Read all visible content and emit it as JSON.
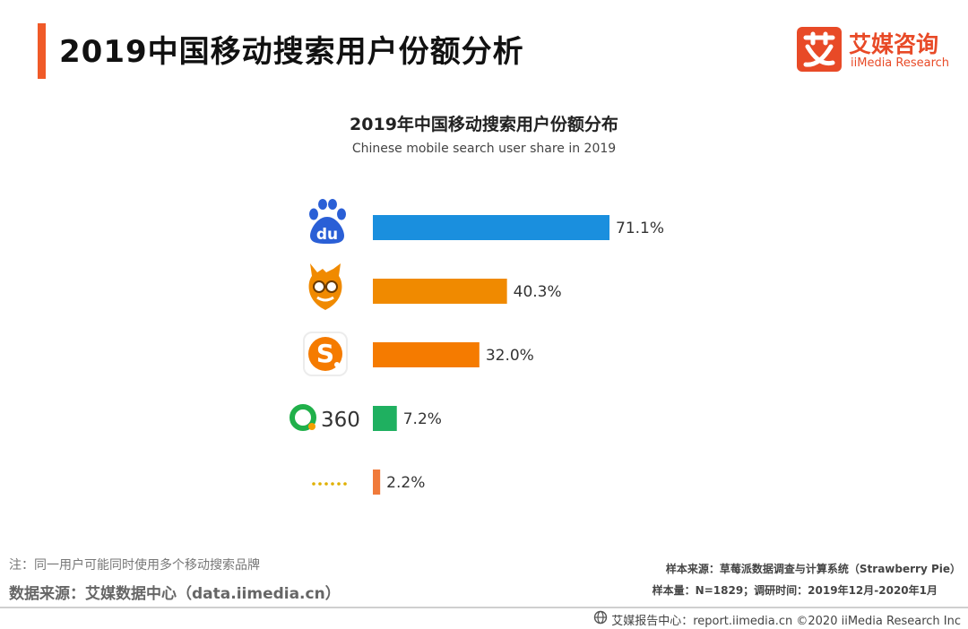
{
  "header": {
    "title": "2019中国移动搜索用户份额分析",
    "brand_cn": "艾媒咨询",
    "brand_en": "iiMedia Research",
    "brand_colors": {
      "accent": "#f05a28",
      "brand": "#e84a27"
    }
  },
  "chart_data": {
    "type": "bar",
    "orientation": "horizontal",
    "title": "2019年中国移动搜索用户份额分布",
    "subtitle": "Chinese mobile search user share in 2019",
    "categories": [
      "baidu-logo",
      "uc-logo",
      "sogou-logo",
      "360-logo",
      "other-logo"
    ],
    "values": [
      71.1,
      40.3,
      32.0,
      7.2,
      2.2
    ],
    "value_labels": [
      "71.1%",
      "40.3%",
      "32.0%",
      "7.2%",
      "2.2%"
    ],
    "category_logo_text": {
      "360": "360"
    },
    "colors": [
      "#1a8fde",
      "#f08a00",
      "#f57b00",
      "#1fb060",
      "#f07a3a"
    ],
    "xlim": [
      0,
      100
    ],
    "grid": false,
    "legend": "none"
  },
  "notes": {
    "note": "注：同一用户可能同时使用多个移动搜索品牌",
    "source": "数据来源：艾媒数据中心（data.iimedia.cn）",
    "sample_source": "样本来源：草莓派数据调查与计算系统（Strawberry Pie）",
    "sample_size": "样本量：N=1829；调研时间：2019年12月-2020年1月"
  },
  "footer": {
    "text": "艾媒报告中心：report.iimedia.cn  ©2020  iiMedia Research  Inc",
    "icon": "globe-icon"
  }
}
